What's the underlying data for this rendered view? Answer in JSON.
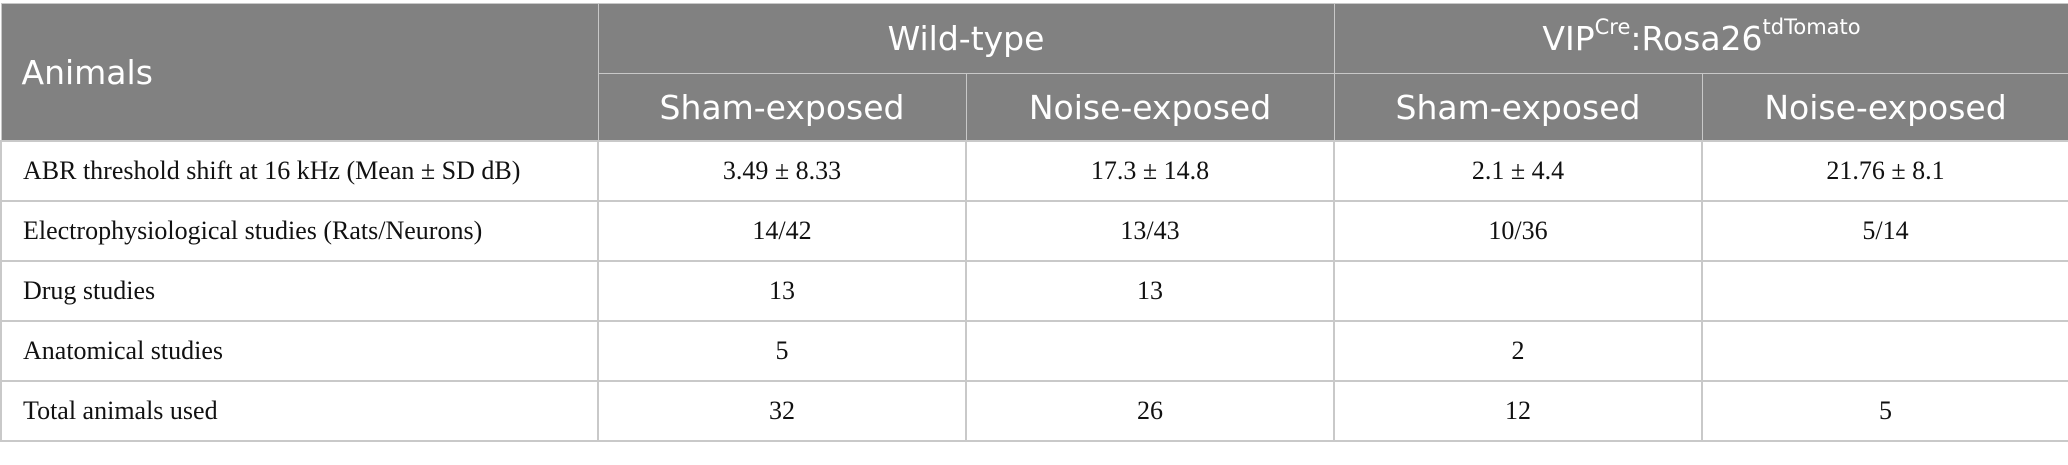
{
  "header": {
    "corner": "Animals",
    "groups": [
      {
        "label": "Wild-type",
        "sup": "",
        "suffix": "",
        "sup2": ""
      },
      {
        "label": "VIP",
        "sup": "Cre",
        "suffix": ":Rosa26",
        "sup2": "tdTomato"
      }
    ],
    "subheaders": [
      "Sham-exposed",
      "Noise-exposed",
      "Sham-exposed",
      "Noise-exposed"
    ]
  },
  "rows": [
    {
      "label": "ABR threshold shift at 16 kHz (Mean ± SD dB)",
      "cells": [
        "3.49 ± 8.33",
        "17.3 ± 14.8",
        "2.1 ± 4.4",
        "21.76 ± 8.1"
      ]
    },
    {
      "label": "Electrophysiological studies (Rats/Neurons)",
      "cells": [
        "14/42",
        "13/43",
        "10/36",
        "5/14"
      ]
    },
    {
      "label": "Drug studies",
      "cells": [
        "13",
        "13",
        "",
        ""
      ]
    },
    {
      "label": "Anatomical studies",
      "cells": [
        "5",
        "",
        "2",
        ""
      ]
    },
    {
      "label": "Total animals used",
      "cells": [
        "32",
        "26",
        "12",
        "5"
      ]
    }
  ]
}
